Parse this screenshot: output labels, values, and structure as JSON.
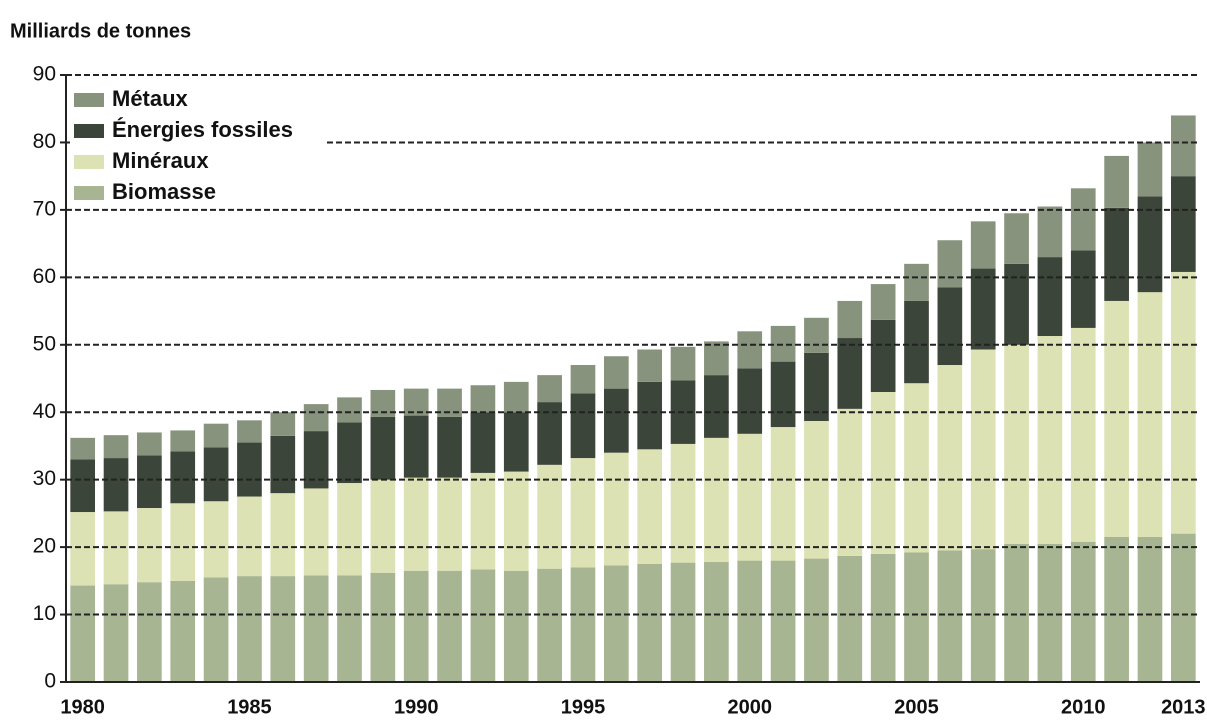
{
  "chart_data": {
    "type": "stacked_bar",
    "ylabel": "Milliards de tonnes",
    "categories": [
      "1980",
      null,
      null,
      null,
      null,
      "1985",
      null,
      null,
      null,
      null,
      "1990",
      null,
      null,
      null,
      null,
      "1995",
      null,
      null,
      null,
      null,
      "2000",
      null,
      null,
      null,
      null,
      "2005",
      null,
      null,
      null,
      null,
      "2010",
      null,
      null,
      "2013"
    ],
    "series": [
      {
        "name": "Biomasse",
        "color": "#a7b592",
        "values": [
          14.3,
          14.5,
          14.8,
          15.0,
          15.5,
          15.7,
          15.7,
          15.8,
          15.8,
          16.2,
          16.5,
          16.5,
          16.7,
          16.5,
          16.8,
          17.0,
          17.3,
          17.5,
          17.7,
          17.8,
          18.0,
          18.0,
          18.3,
          18.7,
          19.0,
          19.2,
          19.5,
          19.7,
          20.5,
          20.5,
          20.8,
          21.5,
          21.5,
          22.0
        ]
      },
      {
        "name": "Minéraux",
        "color": "#dde2b4",
        "values": [
          10.9,
          10.8,
          11.0,
          11.5,
          11.3,
          11.8,
          12.3,
          12.9,
          13.7,
          13.8,
          13.8,
          13.8,
          14.3,
          14.7,
          15.4,
          16.2,
          16.7,
          17.0,
          17.6,
          18.4,
          18.8,
          19.8,
          20.4,
          21.8,
          24.0,
          25.1,
          27.5,
          29.6,
          29.5,
          30.8,
          31.7,
          35.0,
          36.3,
          38.8
        ]
      },
      {
        "name": "Énergies fossiles",
        "color": "#3c4539",
        "values": [
          7.8,
          7.9,
          7.8,
          7.7,
          8.0,
          8.0,
          8.5,
          8.5,
          9.0,
          9.3,
          9.2,
          9.0,
          9.0,
          8.8,
          9.3,
          9.6,
          9.5,
          10.0,
          9.4,
          9.3,
          9.7,
          9.7,
          10.1,
          10.5,
          10.7,
          12.2,
          11.5,
          12.0,
          12.0,
          11.7,
          11.5,
          13.8,
          14.2,
          14.2
        ]
      },
      {
        "name": "Métaux",
        "color": "#87937c",
        "values": [
          3.2,
          3.4,
          3.4,
          3.1,
          3.5,
          3.3,
          3.5,
          4.0,
          3.7,
          4.0,
          4.0,
          4.2,
          4.0,
          4.5,
          4.0,
          4.2,
          4.8,
          4.8,
          5.0,
          5.0,
          5.5,
          5.3,
          5.2,
          5.5,
          5.3,
          5.5,
          7.0,
          7.0,
          7.5,
          7.5,
          9.2,
          7.7,
          8.0,
          9.0
        ]
      }
    ],
    "ylim": [
      0,
      90
    ],
    "yticks": [
      0,
      10,
      20,
      30,
      40,
      50,
      60,
      70,
      80,
      90
    ],
    "grid": true,
    "legend": "top-left"
  }
}
